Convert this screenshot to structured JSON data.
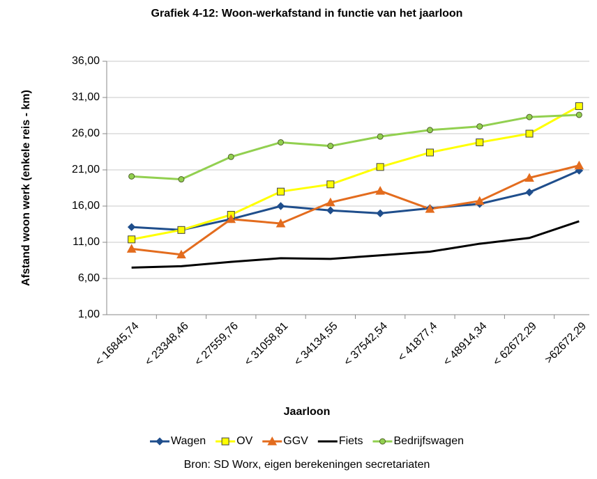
{
  "chart_data": {
    "type": "line",
    "title": "Grafiek 4-12: Woon-werkafstand in functie van het jaarloon",
    "x_label": "Jaarloon",
    "y_label": "Afstand woon werk (enkele reis - km)",
    "source": "Bron: SD Worx, eigen berekeningen secretariaten",
    "categories": [
      "< 16845,74",
      "< 23348,46",
      "< 27559,76",
      "< 31058,81",
      "< 34134,55",
      "< 37542,54",
      "< 41877,4",
      "< 48914,34",
      "< 62672,29",
      ">62672,29"
    ],
    "series": [
      {
        "name": "Wagen",
        "color": "#1f4e8c",
        "marker": "diamond",
        "values": [
          13.1,
          12.7,
          14.2,
          16.0,
          15.4,
          15.0,
          15.7,
          16.3,
          17.9,
          20.9
        ]
      },
      {
        "name": "OV",
        "color": "#ffff00",
        "marker": "square",
        "values": [
          11.4,
          12.7,
          14.8,
          18.0,
          19.0,
          21.4,
          23.4,
          24.8,
          26.0,
          29.8
        ]
      },
      {
        "name": "GGV",
        "color": "#e36c1e",
        "marker": "triangle",
        "values": [
          10.1,
          9.3,
          14.2,
          13.6,
          16.5,
          18.1,
          15.6,
          16.7,
          19.9,
          21.6
        ]
      },
      {
        "name": "Fiets",
        "color": "#000000",
        "marker": "none",
        "values": [
          7.5,
          7.7,
          8.3,
          8.8,
          8.7,
          9.2,
          9.7,
          10.8,
          11.6,
          13.9
        ]
      },
      {
        "name": "Bedrijfswagen",
        "color": "#92d050",
        "marker": "circle",
        "values": [
          20.1,
          19.7,
          22.8,
          24.8,
          24.3,
          25.6,
          26.5,
          27.0,
          28.3,
          28.6
        ]
      }
    ],
    "ylim": [
      1,
      36
    ],
    "yticks": [
      {
        "value": 1,
        "label": "1,00"
      },
      {
        "value": 6,
        "label": "6,00"
      },
      {
        "value": 11,
        "label": "11,00"
      },
      {
        "value": 16,
        "label": "16,00"
      },
      {
        "value": 21,
        "label": "21,00"
      },
      {
        "value": 26,
        "label": "26,00"
      },
      {
        "value": 31,
        "label": "31,00"
      },
      {
        "value": 36,
        "label": "36,00"
      }
    ],
    "grid": true
  }
}
